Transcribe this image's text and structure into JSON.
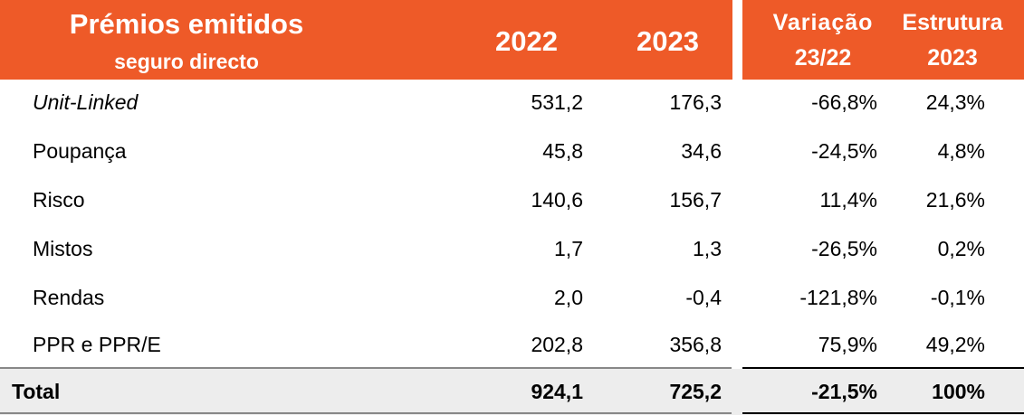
{
  "header": {
    "title": "Prémios emitidos",
    "subtitle": "seguro directo",
    "col_2022": "2022",
    "col_2023": "2023",
    "variacao_line1": "Variação",
    "variacao_line2": "23/22",
    "estrutura_line1": "Estrutura",
    "estrutura_line2": "2023"
  },
  "rows": [
    {
      "label": "Unit-Linked",
      "v2022": "531,2",
      "v2023": "176,3",
      "variacao": "-66,8%",
      "estrutura": "24,3%"
    },
    {
      "label": "Poupança",
      "v2022": "45,8",
      "v2023": "34,6",
      "variacao": "-24,5%",
      "estrutura": "4,8%"
    },
    {
      "label": "Risco",
      "v2022": "140,6",
      "v2023": "156,7",
      "variacao": "11,4%",
      "estrutura": "21,6%"
    },
    {
      "label": "Mistos",
      "v2022": "1,7",
      "v2023": "1,3",
      "variacao": "-26,5%",
      "estrutura": "0,2%"
    },
    {
      "label": "Rendas",
      "v2022": "2,0",
      "v2023": "-0,4",
      "variacao": "-121,8%",
      "estrutura": "-0,1%"
    },
    {
      "label": "PPR e PPR/E",
      "v2022": "202,8",
      "v2023": "356,8",
      "variacao": "75,9%",
      "estrutura": "49,2%"
    }
  ],
  "total": {
    "label": "Total",
    "v2022": "924,1",
    "v2023": "725,2",
    "variacao": "-21,5%",
    "estrutura": "100%"
  },
  "colors": {
    "header_bg": "#ee5a28",
    "header_text": "#ffffff",
    "total_bg": "#ededed"
  }
}
